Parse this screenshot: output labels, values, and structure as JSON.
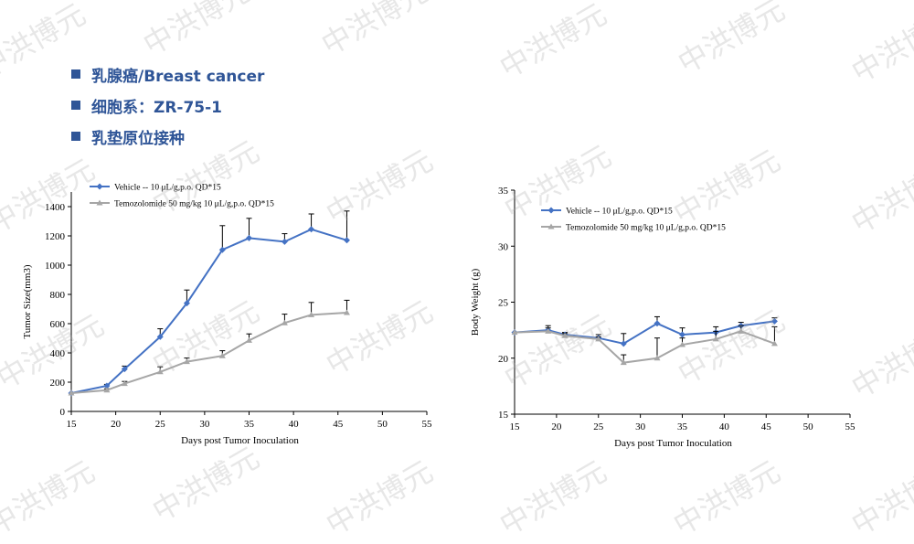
{
  "header": {
    "items": [
      "乳腺癌/Breast cancer",
      "细胞系：ZR-75-1",
      "乳垫原位接种"
    ]
  },
  "watermark": "中洪博元",
  "colors": {
    "accent": "#2F5597",
    "vehicle": "#4472C4",
    "temozolomide": "#A6A6A6"
  },
  "chart_data": [
    {
      "type": "line",
      "xlabel": "Days post Tumor Inoculation",
      "ylabel": "Tumor Size(mm3)",
      "xlim": [
        15,
        55
      ],
      "ylim": [
        0,
        1500
      ],
      "xticks": [
        15,
        20,
        25,
        30,
        35,
        40,
        45,
        50,
        55
      ],
      "yticks": [
        0,
        200,
        400,
        600,
        800,
        1000,
        1200,
        1400
      ],
      "legend_position": "top-left",
      "series": [
        {
          "name": "Vehicle -- 10 μL/g,p.o. QD*15",
          "marker": "diamond",
          "x": [
            15,
            19,
            21,
            25,
            28,
            32,
            35,
            39,
            42,
            46
          ],
          "y": [
            125,
            175,
            290,
            510,
            740,
            1105,
            1185,
            1160,
            1245,
            1170
          ],
          "err": [
            0,
            10,
            20,
            55,
            90,
            165,
            135,
            55,
            105,
            200
          ]
        },
        {
          "name": "Temozolomide 50 mg/kg 10 μL/g,p.o. QD*15",
          "marker": "triangle",
          "x": [
            15,
            19,
            21,
            25,
            28,
            32,
            35,
            39,
            42,
            46
          ],
          "y": [
            125,
            145,
            190,
            270,
            340,
            380,
            485,
            605,
            660,
            675
          ],
          "err": [
            0,
            10,
            15,
            35,
            25,
            35,
            45,
            60,
            85,
            85
          ]
        }
      ]
    },
    {
      "type": "line",
      "xlabel": "Days post Tumor Inoculation",
      "ylabel": "Body Weight (g)",
      "xlim": [
        15,
        55
      ],
      "ylim": [
        15,
        35
      ],
      "xticks": [
        15,
        20,
        25,
        30,
        35,
        40,
        45,
        50,
        55
      ],
      "yticks": [
        15,
        20,
        25,
        30,
        35
      ],
      "legend_position": "top-left",
      "series": [
        {
          "name": "Vehicle -- 10 μL/g,p.o. QD*15",
          "marker": "diamond",
          "x": [
            15,
            19,
            21,
            25,
            28,
            32,
            35,
            39,
            42,
            46
          ],
          "y": [
            22.3,
            22.5,
            22.1,
            21.8,
            21.3,
            23.1,
            22.1,
            22.3,
            22.9,
            23.3
          ],
          "err": [
            0,
            0.4,
            0.2,
            0.3,
            0.9,
            0.6,
            0.6,
            0.5,
            0.3,
            0.3
          ]
        },
        {
          "name": "Temozolomide 50 mg/kg 10 μL/g,p.o. QD*15",
          "marker": "triangle",
          "x": [
            15,
            19,
            21,
            25,
            28,
            32,
            35,
            39,
            42,
            46
          ],
          "y": [
            22.3,
            22.4,
            22.0,
            21.7,
            19.6,
            20.0,
            21.2,
            21.7,
            22.4,
            21.3
          ],
          "err": [
            0,
            0.3,
            0.2,
            0.2,
            0.7,
            1.8,
            0.6,
            0.7,
            0.5,
            1.5
          ]
        }
      ]
    }
  ]
}
